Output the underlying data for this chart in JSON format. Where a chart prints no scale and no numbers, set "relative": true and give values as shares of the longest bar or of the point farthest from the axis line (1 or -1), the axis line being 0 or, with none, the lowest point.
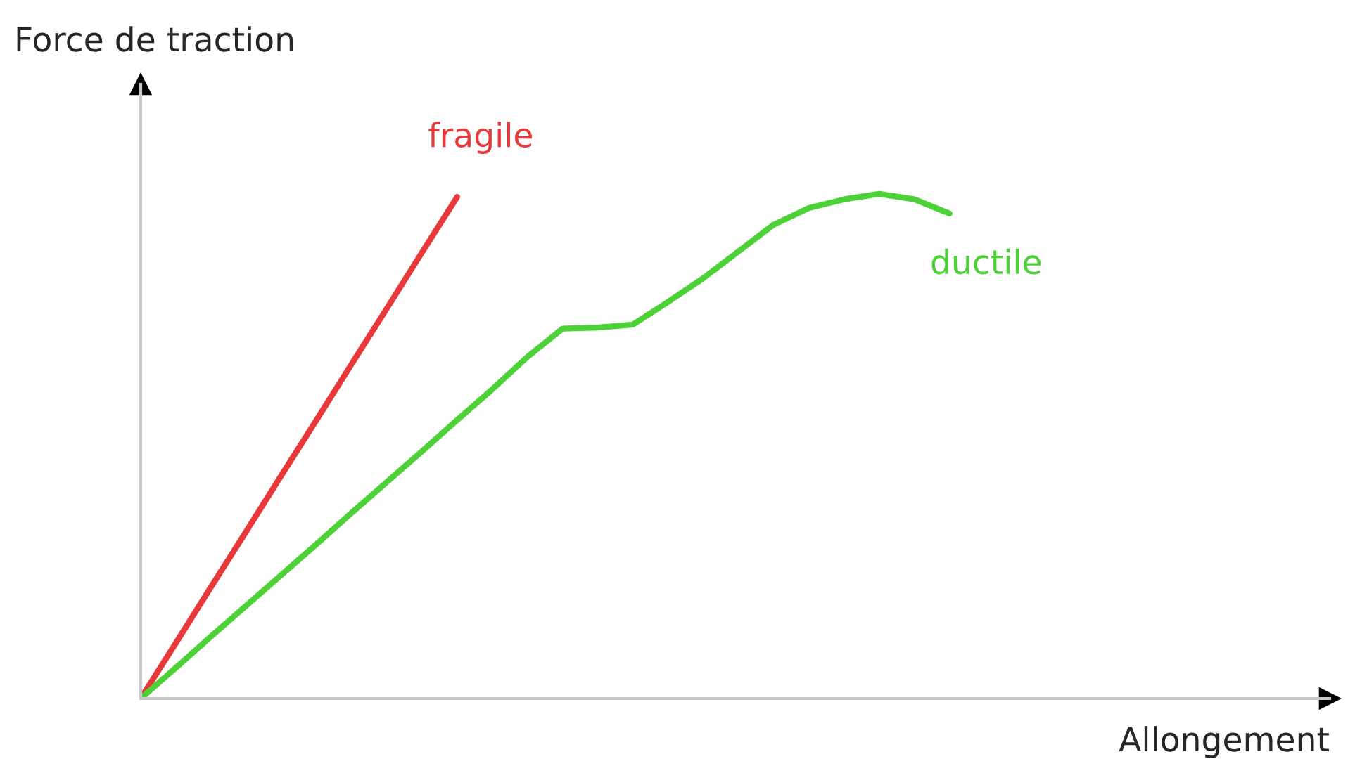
{
  "chart_data": {
    "type": "line",
    "relative": true,
    "xlabel": "Allongement",
    "ylabel": "Force de traction",
    "categories": [
      null,
      null,
      null,
      null,
      null,
      null,
      null,
      null,
      null,
      null,
      null,
      null,
      null,
      null,
      null,
      null,
      null,
      null,
      null,
      null,
      null,
      null,
      null,
      null
    ],
    "series": [
      {
        "name": "fragile",
        "color": "#e8383a",
        "values": [
          0,
          0.11,
          0.221,
          0.331,
          0.442,
          0.552,
          0.663,
          0.773,
          0.884,
          0.994,
          null,
          null,
          null,
          null,
          null,
          null,
          null,
          null,
          null,
          null,
          null,
          null,
          null,
          null
        ]
      },
      {
        "name": "ductile",
        "color": "#4cd137",
        "values": [
          0,
          0.061,
          0.123,
          0.184,
          0.245,
          0.306,
          0.368,
          0.429,
          0.49,
          0.552,
          0.613,
          0.677,
          0.733,
          0.735,
          0.741,
          0.786,
          0.833,
          0.886,
          0.939,
          0.972,
          0.989,
          1.0,
          0.989,
          0.961
        ]
      }
    ]
  }
}
